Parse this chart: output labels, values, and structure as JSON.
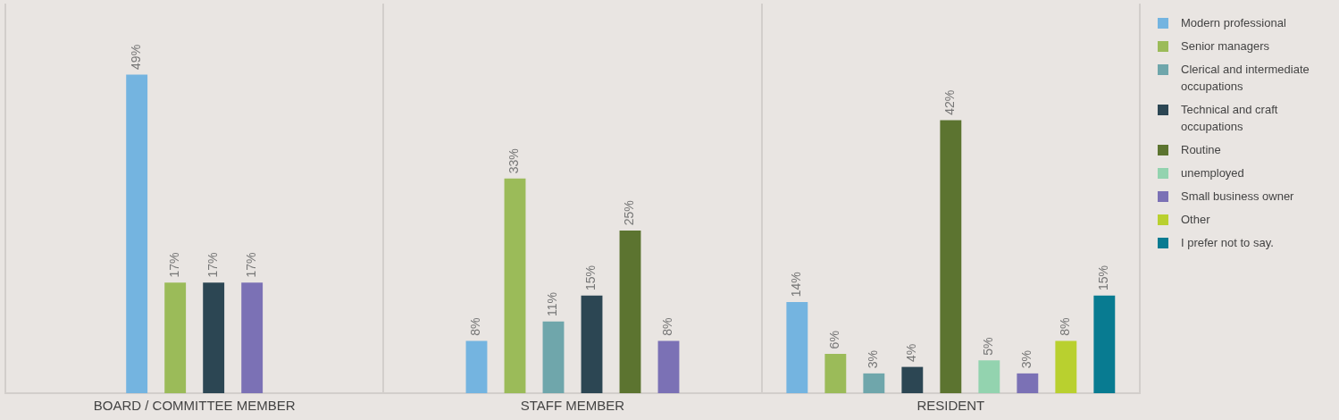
{
  "chart_data": {
    "type": "bar",
    "categories": [
      "BOARD / COMMITTEE MEMBER",
      "STAFF MEMBER",
      "RESIDENT"
    ],
    "series": [
      {
        "name": "Modern professional",
        "color": "#74b4e0",
        "values": [
          49,
          8,
          14
        ],
        "value_labels": [
          "49%",
          "8%",
          "14%"
        ]
      },
      {
        "name": "Senior managers",
        "color": "#9bbb59",
        "values": [
          17,
          33,
          6
        ],
        "value_labels": [
          "17%",
          "33%",
          "6%"
        ]
      },
      {
        "name": "Clerical and intermediate occupations",
        "color": "#6fa6ab",
        "values": [
          null,
          11,
          3
        ],
        "value_labels": [
          null,
          "11%",
          "3%"
        ]
      },
      {
        "name": "Technical and craft occupations",
        "color": "#2c4653",
        "values": [
          17,
          15,
          4
        ],
        "value_labels": [
          "17%",
          "15%",
          "4%"
        ]
      },
      {
        "name": "Routine",
        "color": "#5c7430",
        "values": [
          null,
          25,
          42
        ],
        "value_labels": [
          null,
          "25%",
          "42%"
        ]
      },
      {
        "name": "unemployed",
        "color": "#93d3af",
        "values": [
          null,
          null,
          5
        ],
        "value_labels": [
          null,
          null,
          "5%"
        ]
      },
      {
        "name": "Small business owner",
        "color": "#7b71b5",
        "values": [
          17,
          8,
          3
        ],
        "value_labels": [
          "17%",
          "8%",
          "3%"
        ]
      },
      {
        "name": "Other",
        "color": "#b9d02f",
        "values": [
          null,
          null,
          8
        ],
        "value_labels": [
          null,
          null,
          "8%"
        ]
      },
      {
        "name": "I prefer not to say.",
        "color": "#087b91",
        "values": [
          null,
          null,
          15
        ],
        "value_labels": [
          null,
          null,
          "15%"
        ]
      }
    ],
    "grid": "x",
    "legend": "right"
  }
}
